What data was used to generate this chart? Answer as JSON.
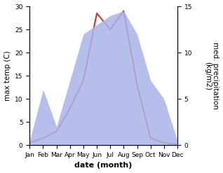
{
  "months": [
    "Jan",
    "Feb",
    "Mar",
    "Apr",
    "May",
    "Jun",
    "Jul",
    "Aug",
    "Sep",
    "Oct",
    "Nov",
    "Dec"
  ],
  "month_indices": [
    1,
    2,
    3,
    4,
    5,
    6,
    7,
    8,
    9,
    10,
    11,
    12
  ],
  "temperature": [
    0.5,
    1.5,
    3.0,
    8.0,
    14.0,
    28.5,
    25.0,
    29.0,
    13.0,
    1.5,
    0.5,
    0.2
  ],
  "precipitation": [
    0.5,
    6.0,
    2.0,
    7.0,
    12.0,
    13.0,
    14.0,
    14.5,
    12.0,
    7.0,
    5.0,
    0.5
  ],
  "temp_color": "#c0392b",
  "precip_fill_color": "#aab4e8",
  "precip_fill_alpha": 0.85,
  "temp_ylim": [
    0,
    30
  ],
  "precip_ylim": [
    0,
    15
  ],
  "temp_ylabel": "max temp (C)",
  "precip_ylabel": "med. precipitation\n(kg/m2)",
  "xlabel": "date (month)",
  "temp_yticks": [
    0,
    5,
    10,
    15,
    20,
    25,
    30
  ],
  "precip_yticks": [
    0,
    5,
    10,
    15
  ],
  "background_color": "#ffffff",
  "label_fontsize": 7.5,
  "tick_fontsize": 6.5,
  "xlabel_fontsize": 8,
  "line_width": 1.5
}
